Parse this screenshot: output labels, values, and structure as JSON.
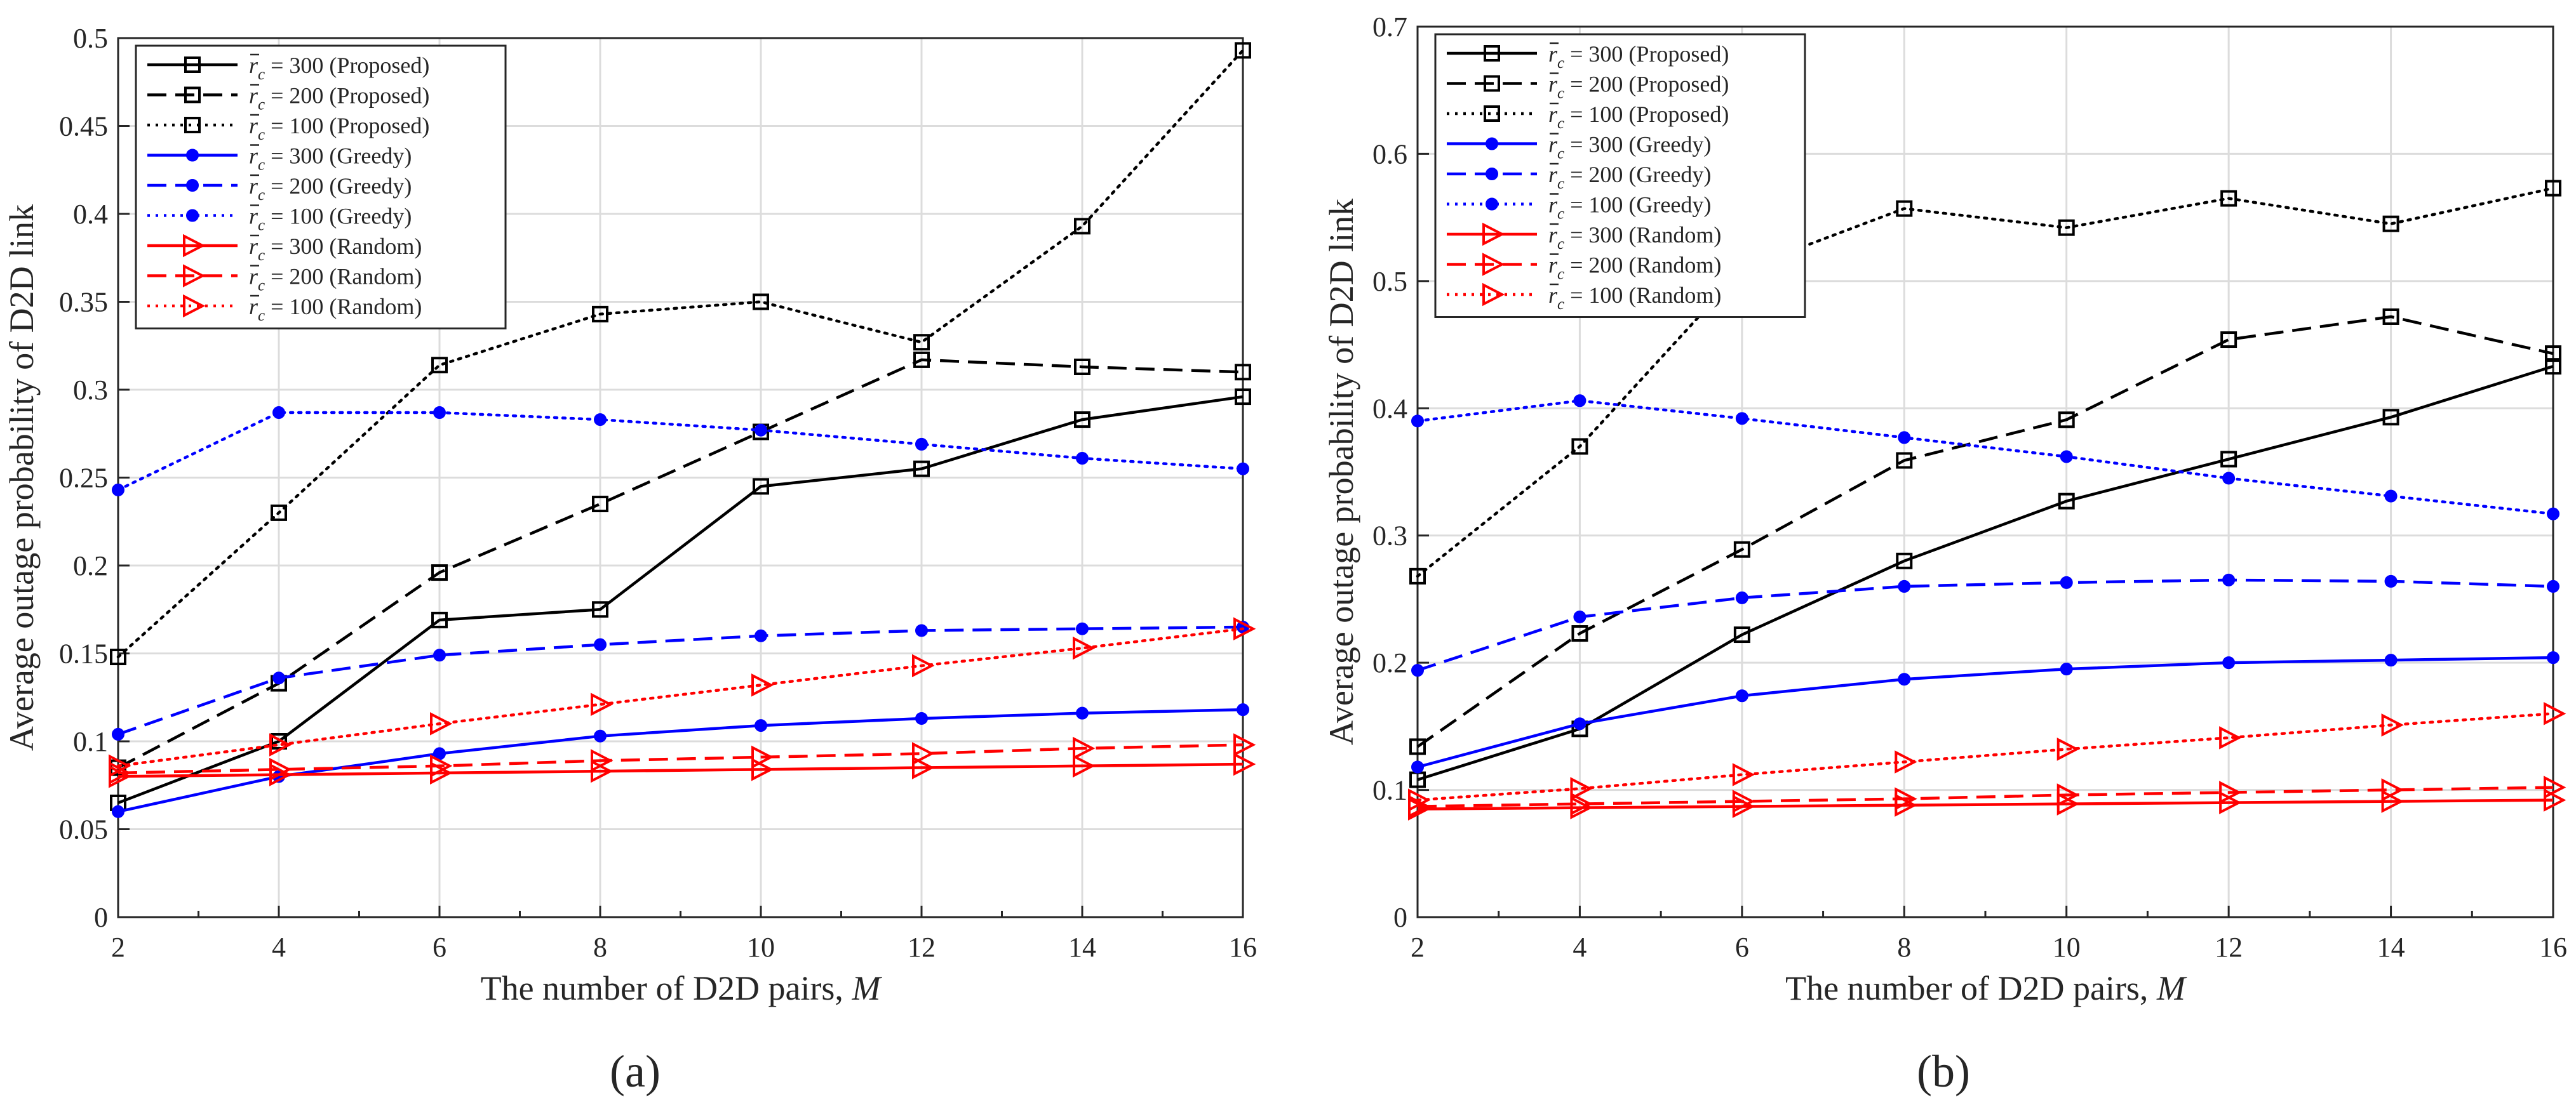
{
  "chart_data": [
    {
      "type": "line",
      "panel_label": "(a)",
      "xlabel": "The number of D2D pairs,",
      "xlabel_var": "M",
      "ylabel": "Average outage probability of D2D link",
      "xlim": [
        2,
        16
      ],
      "ylim": [
        0,
        0.5
      ],
      "x_ticks": [
        2,
        4,
        6,
        8,
        10,
        12,
        14,
        16
      ],
      "x_tick_labels": [
        "2",
        "4",
        "6",
        "8",
        "10",
        "12",
        "14",
        "16"
      ],
      "y_ticks": [
        0,
        0.05,
        0.1,
        0.15,
        0.2,
        0.25,
        0.3,
        0.35,
        0.4,
        0.45,
        0.5
      ],
      "y_tick_labels": [
        "0",
        "0.05",
        "0.1",
        "0.15",
        "0.2",
        "0.25",
        "0.3",
        "0.35",
        "0.4",
        "0.45",
        "0.5"
      ],
      "grid": true,
      "legend_position": "top-left",
      "x": [
        2,
        4,
        6,
        8,
        10,
        12,
        14,
        16
      ],
      "series": [
        {
          "name": "= 300 (Proposed)",
          "rc": "300",
          "method": "(Proposed)",
          "color": "#000000",
          "dash": "solid",
          "marker": "square",
          "values": [
            0.065,
            0.1,
            0.169,
            0.175,
            0.245,
            0.255,
            0.283,
            0.296
          ]
        },
        {
          "name": "= 200 (Proposed)",
          "rc": "200",
          "method": "(Proposed)",
          "color": "#000000",
          "dash": "dashed",
          "marker": "square",
          "values": [
            0.085,
            0.133,
            0.196,
            0.235,
            0.276,
            0.317,
            0.313,
            0.31
          ]
        },
        {
          "name": "= 100 (Proposed)",
          "rc": "100",
          "method": "(Proposed)",
          "color": "#000000",
          "dash": "dotted",
          "marker": "square",
          "values": [
            0.148,
            0.23,
            0.314,
            0.343,
            0.35,
            0.327,
            0.393,
            0.493
          ]
        },
        {
          "name": "= 300 (Greedy)",
          "rc": "300",
          "method": "(Greedy)",
          "color": "#0000ff",
          "dash": "solid",
          "marker": "circle",
          "values": [
            0.06,
            0.08,
            0.093,
            0.103,
            0.109,
            0.113,
            0.116,
            0.118
          ]
        },
        {
          "name": "= 200 (Greedy)",
          "rc": "200",
          "method": "(Greedy)",
          "color": "#0000ff",
          "dash": "dashed",
          "marker": "circle",
          "values": [
            0.104,
            0.136,
            0.149,
            0.155,
            0.16,
            0.163,
            0.164,
            0.165
          ]
        },
        {
          "name": "= 100 (Greedy)",
          "rc": "100",
          "method": "(Greedy)",
          "color": "#0000ff",
          "dash": "dotted",
          "marker": "circle",
          "values": [
            0.243,
            0.287,
            0.287,
            0.283,
            0.277,
            0.269,
            0.261,
            0.255
          ]
        },
        {
          "name": "= 300 (Random)",
          "rc": "300",
          "method": "(Random)",
          "color": "#ff0000",
          "dash": "solid",
          "marker": "triangle-right",
          "values": [
            0.08,
            0.081,
            0.082,
            0.083,
            0.084,
            0.085,
            0.086,
            0.087
          ]
        },
        {
          "name": "= 200 (Random)",
          "rc": "200",
          "method": "(Random)",
          "color": "#ff0000",
          "dash": "dashed",
          "marker": "triangle-right",
          "values": [
            0.082,
            0.084,
            0.086,
            0.089,
            0.091,
            0.093,
            0.096,
            0.098
          ]
        },
        {
          "name": "= 100 (Random)",
          "rc": "100",
          "method": "(Random)",
          "color": "#ff0000",
          "dash": "dotted",
          "marker": "triangle-right",
          "values": [
            0.086,
            0.098,
            0.11,
            0.121,
            0.132,
            0.143,
            0.153,
            0.164
          ]
        }
      ]
    },
    {
      "type": "line",
      "panel_label": "(b)",
      "xlabel": "The number of D2D pairs,",
      "xlabel_var": "M",
      "ylabel": "Average outage probability of D2D link",
      "xlim": [
        2,
        16
      ],
      "ylim": [
        0,
        0.7
      ],
      "x_ticks": [
        2,
        4,
        6,
        8,
        10,
        12,
        14,
        16
      ],
      "x_tick_labels": [
        "2",
        "4",
        "6",
        "8",
        "10",
        "12",
        "14",
        "16"
      ],
      "y_ticks": [
        0,
        0.1,
        0.2,
        0.3,
        0.4,
        0.5,
        0.6,
        0.7
      ],
      "y_tick_labels": [
        "0",
        "0.1",
        "0.2",
        "0.3",
        "0.4",
        "0.5",
        "0.6",
        "0.7"
      ],
      "grid": true,
      "legend_position": "top-left",
      "x": [
        2,
        4,
        6,
        8,
        10,
        12,
        14,
        16
      ],
      "series": [
        {
          "name": "= 300 (Proposed)",
          "rc": "300",
          "method": "(Proposed)",
          "color": "#000000",
          "dash": "solid",
          "marker": "square",
          "values": [
            0.108,
            0.148,
            0.222,
            0.28,
            0.327,
            0.36,
            0.393,
            0.433
          ]
        },
        {
          "name": "= 200 (Proposed)",
          "rc": "200",
          "method": "(Proposed)",
          "color": "#000000",
          "dash": "dashed",
          "marker": "square",
          "values": [
            0.134,
            0.223,
            0.289,
            0.359,
            0.391,
            0.454,
            0.472,
            0.443
          ]
        },
        {
          "name": "= 100 (Proposed)",
          "rc": "100",
          "method": "(Proposed)",
          "color": "#000000",
          "dash": "dotted",
          "marker": "square",
          "values": [
            0.268,
            0.37,
            0.509,
            0.557,
            0.542,
            0.565,
            0.545,
            0.573
          ]
        },
        {
          "name": "= 300 (Greedy)",
          "rc": "300",
          "method": "(Greedy)",
          "color": "#0000ff",
          "dash": "solid",
          "marker": "circle",
          "values": [
            0.118,
            0.152,
            0.174,
            0.187,
            0.195,
            0.2,
            0.202,
            0.204
          ]
        },
        {
          "name": "= 200 (Greedy)",
          "rc": "200",
          "method": "(Greedy)",
          "color": "#0000ff",
          "dash": "dashed",
          "marker": "circle",
          "values": [
            0.194,
            0.236,
            0.251,
            0.26,
            0.263,
            0.265,
            0.264,
            0.26
          ]
        },
        {
          "name": "= 100 (Greedy)",
          "rc": "100",
          "method": "(Greedy)",
          "color": "#0000ff",
          "dash": "dotted",
          "marker": "circle",
          "values": [
            0.39,
            0.406,
            0.392,
            0.377,
            0.362,
            0.345,
            0.331,
            0.317
          ]
        },
        {
          "name": "= 300 (Random)",
          "rc": "300",
          "method": "(Random)",
          "color": "#ff0000",
          "dash": "solid",
          "marker": "triangle-right",
          "values": [
            0.085,
            0.086,
            0.087,
            0.088,
            0.089,
            0.09,
            0.091,
            0.092
          ]
        },
        {
          "name": "= 200 (Random)",
          "rc": "200",
          "method": "(Random)",
          "color": "#ff0000",
          "dash": "dashed",
          "marker": "triangle-right",
          "values": [
            0.087,
            0.089,
            0.091,
            0.093,
            0.096,
            0.098,
            0.1,
            0.102
          ]
        },
        {
          "name": "= 100 (Random)",
          "rc": "100",
          "method": "(Random)",
          "color": "#ff0000",
          "dash": "dotted",
          "marker": "triangle-right",
          "values": [
            0.092,
            0.101,
            0.112,
            0.122,
            0.132,
            0.141,
            0.151,
            0.16
          ]
        }
      ]
    }
  ]
}
